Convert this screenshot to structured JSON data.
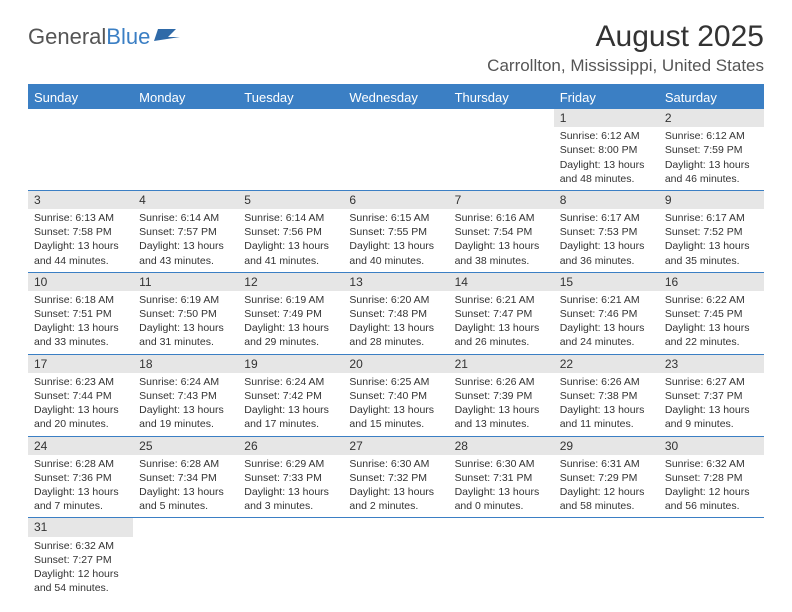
{
  "logo": {
    "word1": "General",
    "word2": "Blue"
  },
  "header": {
    "month_title": "August 2025",
    "location": "Carrollton, Mississippi, United States"
  },
  "colors": {
    "header_bg": "#3b7fc4",
    "header_text": "#ffffff",
    "daynum_bg": "#e6e6e6",
    "border": "#3b7fc4",
    "body_text": "#333333"
  },
  "calendar": {
    "day_headers": [
      "Sunday",
      "Monday",
      "Tuesday",
      "Wednesday",
      "Thursday",
      "Friday",
      "Saturday"
    ],
    "weeks": [
      [
        null,
        null,
        null,
        null,
        null,
        {
          "n": "1",
          "sr": "Sunrise: 6:12 AM",
          "ss": "Sunset: 8:00 PM",
          "d1": "Daylight: 13 hours",
          "d2": "and 48 minutes."
        },
        {
          "n": "2",
          "sr": "Sunrise: 6:12 AM",
          "ss": "Sunset: 7:59 PM",
          "d1": "Daylight: 13 hours",
          "d2": "and 46 minutes."
        }
      ],
      [
        {
          "n": "3",
          "sr": "Sunrise: 6:13 AM",
          "ss": "Sunset: 7:58 PM",
          "d1": "Daylight: 13 hours",
          "d2": "and 44 minutes."
        },
        {
          "n": "4",
          "sr": "Sunrise: 6:14 AM",
          "ss": "Sunset: 7:57 PM",
          "d1": "Daylight: 13 hours",
          "d2": "and 43 minutes."
        },
        {
          "n": "5",
          "sr": "Sunrise: 6:14 AM",
          "ss": "Sunset: 7:56 PM",
          "d1": "Daylight: 13 hours",
          "d2": "and 41 minutes."
        },
        {
          "n": "6",
          "sr": "Sunrise: 6:15 AM",
          "ss": "Sunset: 7:55 PM",
          "d1": "Daylight: 13 hours",
          "d2": "and 40 minutes."
        },
        {
          "n": "7",
          "sr": "Sunrise: 6:16 AM",
          "ss": "Sunset: 7:54 PM",
          "d1": "Daylight: 13 hours",
          "d2": "and 38 minutes."
        },
        {
          "n": "8",
          "sr": "Sunrise: 6:17 AM",
          "ss": "Sunset: 7:53 PM",
          "d1": "Daylight: 13 hours",
          "d2": "and 36 minutes."
        },
        {
          "n": "9",
          "sr": "Sunrise: 6:17 AM",
          "ss": "Sunset: 7:52 PM",
          "d1": "Daylight: 13 hours",
          "d2": "and 35 minutes."
        }
      ],
      [
        {
          "n": "10",
          "sr": "Sunrise: 6:18 AM",
          "ss": "Sunset: 7:51 PM",
          "d1": "Daylight: 13 hours",
          "d2": "and 33 minutes."
        },
        {
          "n": "11",
          "sr": "Sunrise: 6:19 AM",
          "ss": "Sunset: 7:50 PM",
          "d1": "Daylight: 13 hours",
          "d2": "and 31 minutes."
        },
        {
          "n": "12",
          "sr": "Sunrise: 6:19 AM",
          "ss": "Sunset: 7:49 PM",
          "d1": "Daylight: 13 hours",
          "d2": "and 29 minutes."
        },
        {
          "n": "13",
          "sr": "Sunrise: 6:20 AM",
          "ss": "Sunset: 7:48 PM",
          "d1": "Daylight: 13 hours",
          "d2": "and 28 minutes."
        },
        {
          "n": "14",
          "sr": "Sunrise: 6:21 AM",
          "ss": "Sunset: 7:47 PM",
          "d1": "Daylight: 13 hours",
          "d2": "and 26 minutes."
        },
        {
          "n": "15",
          "sr": "Sunrise: 6:21 AM",
          "ss": "Sunset: 7:46 PM",
          "d1": "Daylight: 13 hours",
          "d2": "and 24 minutes."
        },
        {
          "n": "16",
          "sr": "Sunrise: 6:22 AM",
          "ss": "Sunset: 7:45 PM",
          "d1": "Daylight: 13 hours",
          "d2": "and 22 minutes."
        }
      ],
      [
        {
          "n": "17",
          "sr": "Sunrise: 6:23 AM",
          "ss": "Sunset: 7:44 PM",
          "d1": "Daylight: 13 hours",
          "d2": "and 20 minutes."
        },
        {
          "n": "18",
          "sr": "Sunrise: 6:24 AM",
          "ss": "Sunset: 7:43 PM",
          "d1": "Daylight: 13 hours",
          "d2": "and 19 minutes."
        },
        {
          "n": "19",
          "sr": "Sunrise: 6:24 AM",
          "ss": "Sunset: 7:42 PM",
          "d1": "Daylight: 13 hours",
          "d2": "and 17 minutes."
        },
        {
          "n": "20",
          "sr": "Sunrise: 6:25 AM",
          "ss": "Sunset: 7:40 PM",
          "d1": "Daylight: 13 hours",
          "d2": "and 15 minutes."
        },
        {
          "n": "21",
          "sr": "Sunrise: 6:26 AM",
          "ss": "Sunset: 7:39 PM",
          "d1": "Daylight: 13 hours",
          "d2": "and 13 minutes."
        },
        {
          "n": "22",
          "sr": "Sunrise: 6:26 AM",
          "ss": "Sunset: 7:38 PM",
          "d1": "Daylight: 13 hours",
          "d2": "and 11 minutes."
        },
        {
          "n": "23",
          "sr": "Sunrise: 6:27 AM",
          "ss": "Sunset: 7:37 PM",
          "d1": "Daylight: 13 hours",
          "d2": "and 9 minutes."
        }
      ],
      [
        {
          "n": "24",
          "sr": "Sunrise: 6:28 AM",
          "ss": "Sunset: 7:36 PM",
          "d1": "Daylight: 13 hours",
          "d2": "and 7 minutes."
        },
        {
          "n": "25",
          "sr": "Sunrise: 6:28 AM",
          "ss": "Sunset: 7:34 PM",
          "d1": "Daylight: 13 hours",
          "d2": "and 5 minutes."
        },
        {
          "n": "26",
          "sr": "Sunrise: 6:29 AM",
          "ss": "Sunset: 7:33 PM",
          "d1": "Daylight: 13 hours",
          "d2": "and 3 minutes."
        },
        {
          "n": "27",
          "sr": "Sunrise: 6:30 AM",
          "ss": "Sunset: 7:32 PM",
          "d1": "Daylight: 13 hours",
          "d2": "and 2 minutes."
        },
        {
          "n": "28",
          "sr": "Sunrise: 6:30 AM",
          "ss": "Sunset: 7:31 PM",
          "d1": "Daylight: 13 hours",
          "d2": "and 0 minutes."
        },
        {
          "n": "29",
          "sr": "Sunrise: 6:31 AM",
          "ss": "Sunset: 7:29 PM",
          "d1": "Daylight: 12 hours",
          "d2": "and 58 minutes."
        },
        {
          "n": "30",
          "sr": "Sunrise: 6:32 AM",
          "ss": "Sunset: 7:28 PM",
          "d1": "Daylight: 12 hours",
          "d2": "and 56 minutes."
        }
      ],
      [
        {
          "n": "31",
          "sr": "Sunrise: 6:32 AM",
          "ss": "Sunset: 7:27 PM",
          "d1": "Daylight: 12 hours",
          "d2": "and 54 minutes."
        },
        null,
        null,
        null,
        null,
        null,
        null
      ]
    ]
  }
}
